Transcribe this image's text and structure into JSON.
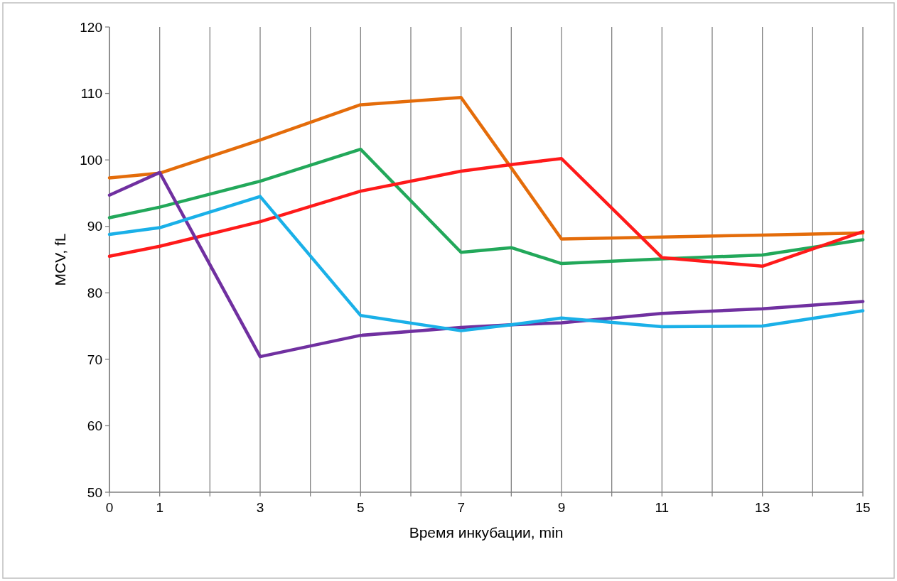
{
  "chart_data": {
    "type": "line",
    "xlabel": "Время инкубации, min",
    "ylabel": "MCV, fL",
    "x": [
      0,
      1,
      3,
      5,
      7,
      8,
      9,
      11,
      13,
      15
    ],
    "xlim": [
      0,
      15
    ],
    "xticks": [
      0,
      1,
      {
        "value": 2,
        "label": null
      },
      3,
      {
        "value": 4,
        "label": null
      },
      5,
      {
        "value": 6,
        "label": null
      },
      7,
      {
        "value": 8,
        "label": null
      },
      9,
      {
        "value": 10,
        "label": null
      },
      11,
      {
        "value": 12,
        "label": null
      },
      13,
      {
        "value": 14,
        "label": null
      },
      15
    ],
    "ylim": [
      50,
      120
    ],
    "yticks": [
      50,
      60,
      70,
      80,
      90,
      100,
      110,
      120
    ],
    "grid": "x",
    "marker": "none",
    "line_style": "solid",
    "series": [
      {
        "color": "#e46c0a",
        "values": [
          97.3,
          98,
          103,
          108.3,
          109.4,
          98.8,
          88.1,
          88.4,
          88.7,
          89
        ]
      },
      {
        "color": "#22a85a",
        "values": [
          91.3,
          92.9,
          96.8,
          101.6,
          86.1,
          86.8,
          84.4,
          85.1,
          85.7,
          88
        ]
      },
      {
        "color": "#ff1a1a",
        "values": [
          85.5,
          87,
          90.7,
          95.3,
          98.3,
          99.3,
          100.2,
          85.3,
          84,
          89.2
        ]
      },
      {
        "color": "#7030a0",
        "values": [
          94.7,
          98.1,
          70.4,
          73.6,
          74.8,
          75.2,
          75.5,
          76.9,
          77.6,
          78.7
        ]
      },
      {
        "color": "#1ab0e8",
        "values": [
          88.8,
          89.8,
          94.5,
          76.6,
          74.3,
          75.2,
          76.2,
          74.9,
          75,
          77.3
        ]
      }
    ]
  }
}
